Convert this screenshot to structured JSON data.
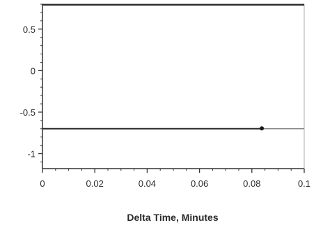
{
  "chart_data": {
    "type": "line",
    "title": "",
    "xlabel": "Delta Time, Minutes",
    "ylabel": "",
    "xlim": [
      0,
      0.1
    ],
    "ylim": [
      -1.18,
      0.8
    ],
    "x_ticks": [
      0,
      0.02,
      0.04,
      0.06,
      0.08,
      0.1
    ],
    "x_tick_labels": [
      "0",
      "0.02",
      "0.04",
      "0.06",
      "0.08",
      "0.1"
    ],
    "y_ticks": [
      0.5,
      0,
      -0.5,
      -1
    ],
    "y_tick_labels": [
      "0.5",
      "0",
      "-0.5",
      "-1"
    ],
    "grid": false,
    "series": [
      {
        "values_x": [
          0,
          0.1
        ],
        "values_y": [
          -0.7,
          -0.7
        ],
        "color": "#2a2a2a",
        "marker_x": 0.0838,
        "marker_y": -0.7
      }
    ],
    "top_line_y": 0.8
  }
}
